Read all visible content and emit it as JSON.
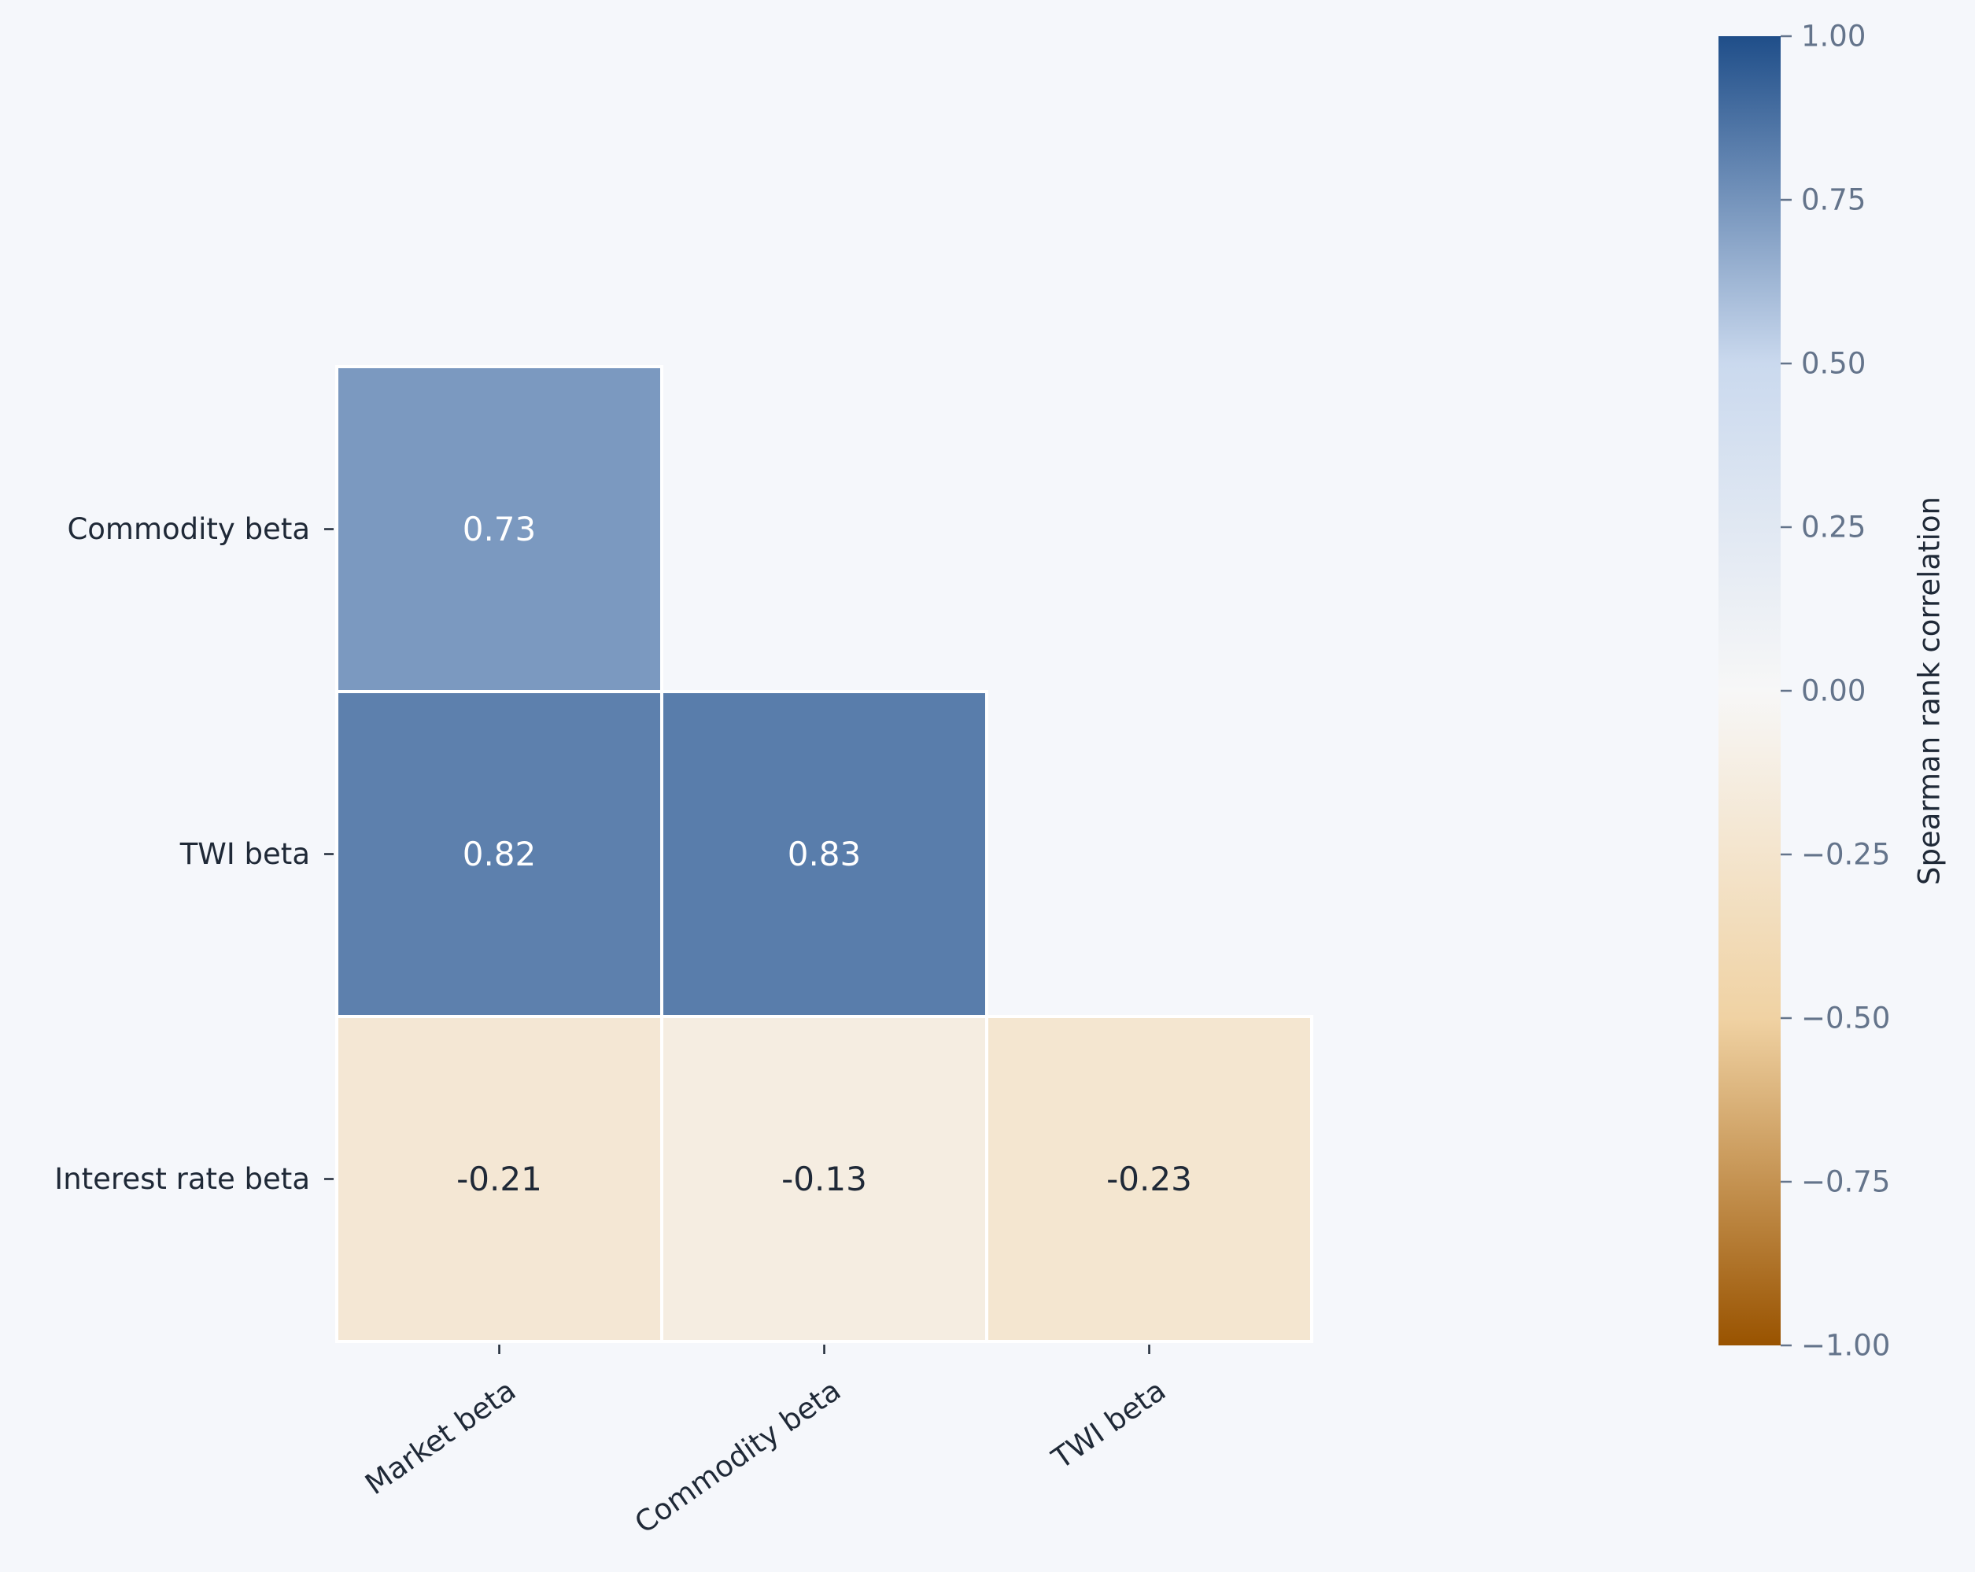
{
  "chart_data": {
    "type": "heatmap",
    "title": "",
    "row_labels": [
      "Commodity beta",
      "TWI beta",
      "Interest rate beta"
    ],
    "col_labels": [
      "Market beta",
      "Commodity beta",
      "TWI beta"
    ],
    "values": [
      [
        0.73,
        null,
        null
      ],
      [
        0.82,
        0.83,
        null
      ],
      [
        -0.21,
        -0.13,
        -0.23
      ]
    ],
    "value_labels": [
      [
        "0.73",
        "",
        ""
      ],
      [
        "0.82",
        "0.83",
        ""
      ],
      [
        "-0.21",
        "-0.13",
        "-0.23"
      ]
    ],
    "mask": "upper-triangle",
    "colorbar": {
      "label": "Spearman rank correlation",
      "range": [
        -1,
        1
      ],
      "ticks": [
        1.0,
        0.75,
        0.5,
        0.25,
        0.0,
        -0.25,
        -0.5,
        -0.75,
        -1.0
      ],
      "tick_labels": [
        "1.00",
        "0.75",
        "0.50",
        "0.25",
        "0.00",
        "−0.25",
        "−0.50",
        "−0.75",
        "−1.00"
      ]
    },
    "colormap": {
      "stops": [
        {
          "value": -1.0,
          "color": "#995300"
        },
        {
          "value": -0.5,
          "color": "#f0d2a3"
        },
        {
          "value": 0.0,
          "color": "#f7f7f7"
        },
        {
          "value": 0.5,
          "color": "#cad9ee"
        },
        {
          "value": 1.0,
          "color": "#1f4e89"
        }
      ]
    },
    "colors": {
      "background": "#f5f7fb",
      "cell_border": "#ffffff",
      "text_dark": "#1f2937",
      "text_light": "#ffffff",
      "tick_color": "#64748b"
    }
  }
}
